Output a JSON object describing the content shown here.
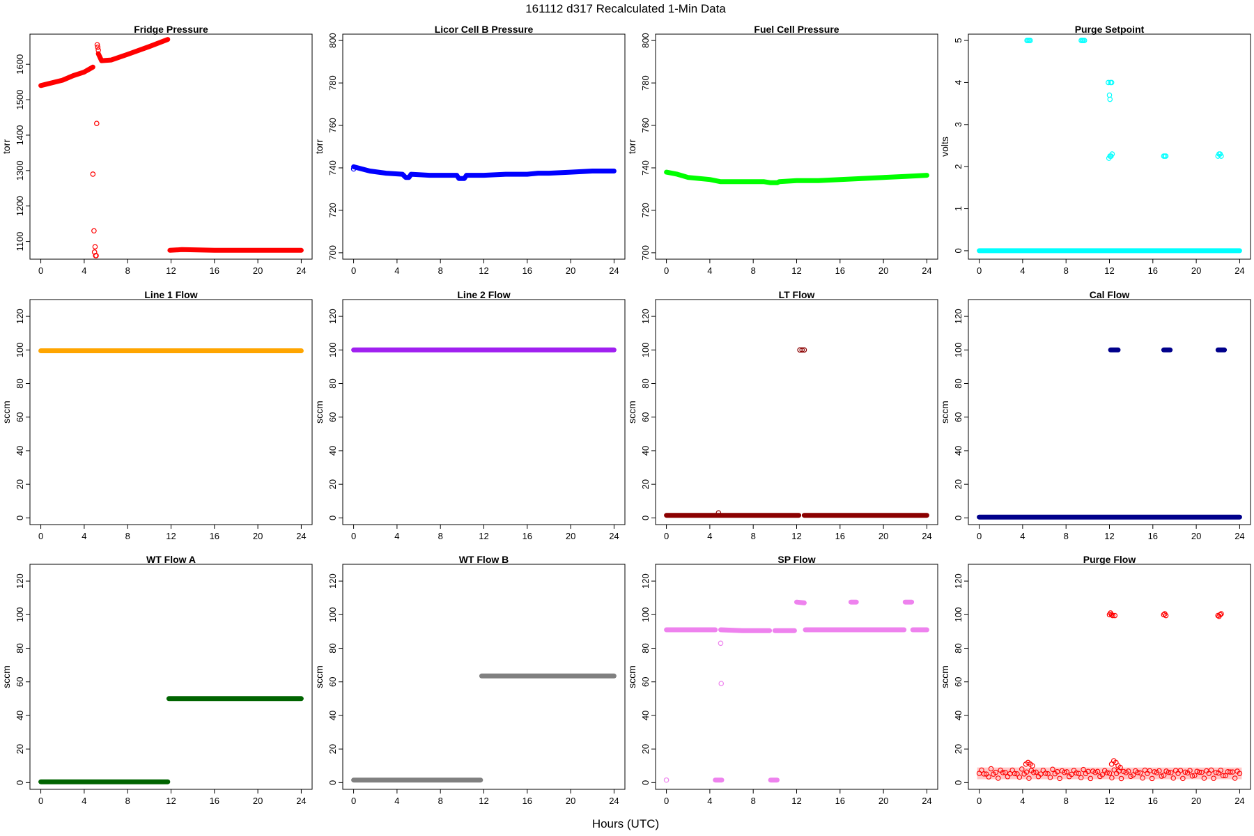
{
  "figure": {
    "title": "161112   d317   Recalculated 1-Min Data",
    "xlabel": "Hours (UTC)"
  },
  "chart_data": [
    {
      "type": "scatter",
      "title": "Fridge Pressure",
      "ylabel": "torr",
      "xlim": [
        -1,
        25
      ],
      "ylim": [
        1050,
        1685
      ],
      "xticks": [
        0,
        4,
        8,
        12,
        16,
        20,
        24
      ],
      "yticks": [
        1100,
        1200,
        1300,
        1400,
        1500,
        1600
      ],
      "color": "#ff0000",
      "series": [
        {
          "type": "line",
          "points": [
            [
              0,
              1540
            ],
            [
              2,
              1555
            ],
            [
              3,
              1568
            ],
            [
              4,
              1578
            ],
            [
              4.8,
              1592
            ]
          ]
        },
        {
          "type": "line",
          "points": [
            [
              5.3,
              1630
            ],
            [
              5.6,
              1610
            ],
            [
              6.5,
              1612
            ],
            [
              8,
              1628
            ],
            [
              10,
              1650
            ],
            [
              11.7,
              1670
            ]
          ]
        },
        {
          "type": "line",
          "points": [
            [
              11.9,
              1075
            ],
            [
              13,
              1077
            ],
            [
              16,
              1075
            ],
            [
              20,
              1075
            ],
            [
              24,
              1075
            ]
          ]
        },
        {
          "type": "points",
          "points": [
            [
              4.8,
              1290
            ],
            [
              4.9,
              1130
            ],
            [
              5.0,
              1085
            ],
            [
              4.95,
              1070
            ],
            [
              5.05,
              1060
            ],
            [
              5.1,
              1060
            ],
            [
              5.15,
              1433
            ],
            [
              5.2,
              1655
            ],
            [
              5.25,
              1648
            ],
            [
              5.3,
              1640
            ]
          ]
        }
      ]
    },
    {
      "type": "scatter",
      "title": "Licor Cell B Pressure",
      "ylabel": "torr",
      "xlim": [
        -1,
        25
      ],
      "ylim": [
        697,
        803
      ],
      "xticks": [
        0,
        4,
        8,
        12,
        16,
        20,
        24
      ],
      "yticks": [
        700,
        720,
        740,
        760,
        780,
        800
      ],
      "color": "#0000ff",
      "series": [
        {
          "type": "line",
          "points": [
            [
              0,
              740.5
            ],
            [
              1.5,
              738.5
            ],
            [
              3,
              737.5
            ],
            [
              4.5,
              737
            ],
            [
              4.8,
              735.5
            ],
            [
              5.1,
              735.5
            ],
            [
              5.3,
              737
            ],
            [
              7,
              736.5
            ],
            [
              9.5,
              736.5
            ],
            [
              9.7,
              735
            ],
            [
              10.2,
              735
            ],
            [
              10.4,
              736.5
            ],
            [
              12,
              736.5
            ],
            [
              14,
              737
            ],
            [
              16,
              737
            ],
            [
              17,
              737.5
            ],
            [
              18,
              737.5
            ],
            [
              20,
              738
            ],
            [
              22,
              738.5
            ],
            [
              24,
              738.5
            ]
          ]
        },
        {
          "type": "points",
          "points": [
            [
              0,
              739.5
            ]
          ]
        }
      ]
    },
    {
      "type": "scatter",
      "title": "Fuel Cell Pressure",
      "ylabel": "torr",
      "xlim": [
        -1,
        25
      ],
      "ylim": [
        697,
        803
      ],
      "xticks": [
        0,
        4,
        8,
        12,
        16,
        20,
        24
      ],
      "yticks": [
        700,
        720,
        740,
        760,
        780,
        800
      ],
      "color": "#00ff00",
      "series": [
        {
          "type": "line",
          "points": [
            [
              0,
              738
            ],
            [
              1,
              737
            ],
            [
              2,
              735.5
            ],
            [
              4,
              734.5
            ],
            [
              5,
              733.5
            ],
            [
              7,
              733.5
            ],
            [
              9,
              733.5
            ],
            [
              9.6,
              733
            ],
            [
              10.2,
              733
            ],
            [
              10.4,
              733.5
            ],
            [
              12,
              734
            ],
            [
              14,
              734
            ],
            [
              16,
              734.5
            ],
            [
              18,
              735
            ],
            [
              20,
              735.5
            ],
            [
              22,
              736
            ],
            [
              24,
              736.5
            ]
          ]
        }
      ]
    },
    {
      "type": "scatter",
      "title": "Purge Setpoint",
      "ylabel": "volts",
      "xlim": [
        -1,
        25
      ],
      "ylim": [
        -0.2,
        5.15
      ],
      "xticks": [
        0,
        4,
        8,
        12,
        16,
        20,
        24
      ],
      "yticks": [
        0,
        1,
        2,
        3,
        4,
        5
      ],
      "color": "#00ffff",
      "series": [
        {
          "type": "line",
          "points": [
            [
              0,
              0
            ],
            [
              24,
              0
            ]
          ]
        },
        {
          "type": "points",
          "points": [
            [
              4.4,
              5
            ],
            [
              4.5,
              5
            ],
            [
              4.6,
              5
            ],
            [
              4.7,
              5
            ],
            [
              9.4,
              5
            ],
            [
              9.5,
              5
            ],
            [
              9.6,
              5
            ],
            [
              9.7,
              5
            ],
            [
              11.9,
              4
            ],
            [
              12.0,
              3.7
            ],
            [
              12.05,
              3.6
            ],
            [
              12.1,
              4
            ],
            [
              12.2,
              4
            ],
            [
              11.95,
              2.2
            ],
            [
              12.05,
              2.25
            ],
            [
              12.15,
              2.25
            ],
            [
              12.25,
              2.3
            ],
            [
              17,
              2.25
            ],
            [
              17.1,
              2.25
            ],
            [
              17.2,
              2.25
            ],
            [
              22.0,
              2.25
            ],
            [
              22.1,
              2.3
            ],
            [
              22.2,
              2.3
            ],
            [
              22.3,
              2.25
            ]
          ]
        }
      ]
    },
    {
      "type": "scatter",
      "title": "Line 1 Flow",
      "ylabel": "sccm",
      "xlim": [
        -1,
        25
      ],
      "ylim": [
        -4,
        130
      ],
      "xticks": [
        0,
        4,
        8,
        12,
        16,
        20,
        24
      ],
      "yticks": [
        0,
        20,
        40,
        60,
        80,
        100,
        120
      ],
      "color": "#ffa500",
      "series": [
        {
          "type": "line",
          "points": [
            [
              0,
              99.5
            ],
            [
              24,
              99.5
            ]
          ]
        }
      ]
    },
    {
      "type": "scatter",
      "title": "Line 2 Flow",
      "ylabel": "sccm",
      "xlim": [
        -1,
        25
      ],
      "ylim": [
        -4,
        130
      ],
      "xticks": [
        0,
        4,
        8,
        12,
        16,
        20,
        24
      ],
      "yticks": [
        0,
        20,
        40,
        60,
        80,
        100,
        120
      ],
      "color": "#a020f0",
      "series": [
        {
          "type": "line",
          "points": [
            [
              0,
              100
            ],
            [
              24,
              100
            ]
          ]
        }
      ]
    },
    {
      "type": "scatter",
      "title": "LT Flow",
      "ylabel": "sccm",
      "xlim": [
        -1,
        25
      ],
      "ylim": [
        -4,
        130
      ],
      "xticks": [
        0,
        4,
        8,
        12,
        16,
        20,
        24
      ],
      "yticks": [
        0,
        20,
        40,
        60,
        80,
        100,
        120
      ],
      "color": "#8b0000",
      "series": [
        {
          "type": "line",
          "points": [
            [
              0,
              1.5
            ],
            [
              12.2,
              1.5
            ]
          ]
        },
        {
          "type": "line",
          "points": [
            [
              12.7,
              1.5
            ],
            [
              24,
              1.5
            ]
          ]
        },
        {
          "type": "points",
          "points": [
            [
              4.8,
              3
            ],
            [
              12.3,
              100
            ],
            [
              12.5,
              100
            ],
            [
              12.7,
              100
            ]
          ]
        }
      ]
    },
    {
      "type": "scatter",
      "title": "Cal Flow",
      "ylabel": "sccm",
      "xlim": [
        -1,
        25
      ],
      "ylim": [
        -4,
        130
      ],
      "xticks": [
        0,
        4,
        8,
        12,
        16,
        20,
        24
      ],
      "yticks": [
        0,
        20,
        40,
        60,
        80,
        100,
        120
      ],
      "color": "#00008b",
      "series": [
        {
          "type": "line",
          "points": [
            [
              0,
              0.5
            ],
            [
              24,
              0.5
            ]
          ]
        },
        {
          "type": "line",
          "points": [
            [
              12.1,
              100
            ],
            [
              12.8,
              100
            ]
          ]
        },
        {
          "type": "line",
          "points": [
            [
              17,
              100
            ],
            [
              17.6,
              100
            ]
          ]
        },
        {
          "type": "line",
          "points": [
            [
              22,
              100
            ],
            [
              22.6,
              100
            ]
          ]
        }
      ]
    },
    {
      "type": "scatter",
      "title": "WT Flow A",
      "ylabel": "sccm",
      "xlim": [
        -1,
        25
      ],
      "ylim": [
        -4,
        130
      ],
      "xticks": [
        0,
        4,
        8,
        12,
        16,
        20,
        24
      ],
      "yticks": [
        0,
        20,
        40,
        60,
        80,
        100,
        120
      ],
      "color": "#006400",
      "series": [
        {
          "type": "line",
          "points": [
            [
              0,
              0.5
            ],
            [
              11.7,
              0.5
            ]
          ]
        },
        {
          "type": "line",
          "points": [
            [
              11.8,
              50
            ],
            [
              24,
              50
            ]
          ]
        }
      ]
    },
    {
      "type": "scatter",
      "title": "WT Flow B",
      "ylabel": "sccm",
      "xlim": [
        -1,
        25
      ],
      "ylim": [
        -4,
        130
      ],
      "xticks": [
        0,
        4,
        8,
        12,
        16,
        20,
        24
      ],
      "yticks": [
        0,
        20,
        40,
        60,
        80,
        100,
        120
      ],
      "color": "#808080",
      "series": [
        {
          "type": "line",
          "points": [
            [
              0,
              1.5
            ],
            [
              11.7,
              1.5
            ]
          ]
        },
        {
          "type": "line",
          "points": [
            [
              11.8,
              63.5
            ],
            [
              24,
              63.5
            ]
          ]
        }
      ]
    },
    {
      "type": "scatter",
      "title": "SP Flow",
      "ylabel": "sccm",
      "xlim": [
        -1,
        25
      ],
      "ylim": [
        -4,
        130
      ],
      "xticks": [
        0,
        4,
        8,
        12,
        16,
        20,
        24
      ],
      "yticks": [
        0,
        20,
        40,
        60,
        80,
        100,
        120
      ],
      "color": "#ee82ee",
      "series": [
        {
          "type": "line",
          "points": [
            [
              0,
              91
            ],
            [
              4.5,
              91
            ]
          ]
        },
        {
          "type": "line",
          "points": [
            [
              5,
              91
            ],
            [
              7,
              90.5
            ],
            [
              9.5,
              90.5
            ]
          ]
        },
        {
          "type": "line",
          "points": [
            [
              10,
              90.5
            ],
            [
              11.8,
              90.5
            ]
          ]
        },
        {
          "type": "line",
          "points": [
            [
              12,
              107.5
            ],
            [
              12.7,
              107
            ]
          ]
        },
        {
          "type": "line",
          "points": [
            [
              12.8,
              91
            ],
            [
              17,
              91
            ],
            [
              21.9,
              91
            ]
          ]
        },
        {
          "type": "line",
          "points": [
            [
              17,
              107.5
            ],
            [
              17.5,
              107.5
            ]
          ]
        },
        {
          "type": "line",
          "points": [
            [
              22,
              107.5
            ],
            [
              22.6,
              107.5
            ]
          ]
        },
        {
          "type": "line",
          "points": [
            [
              22.7,
              91
            ],
            [
              24,
              91
            ]
          ]
        },
        {
          "type": "line",
          "points": [
            [
              4.5,
              1.5
            ],
            [
              5.1,
              1.5
            ]
          ]
        },
        {
          "type": "line",
          "points": [
            [
              9.6,
              1.5
            ],
            [
              10.2,
              1.5
            ]
          ]
        },
        {
          "type": "points",
          "points": [
            [
              0,
              1.5
            ],
            [
              5,
              83
            ],
            [
              5.05,
              59
            ]
          ]
        }
      ]
    },
    {
      "type": "scatter",
      "title": "Purge Flow",
      "ylabel": "sccm",
      "xlim": [
        -1,
        25
      ],
      "ylim": [
        -4,
        130
      ],
      "xticks": [
        0,
        4,
        8,
        12,
        16,
        20,
        24
      ],
      "yticks": [
        0,
        20,
        40,
        60,
        80,
        100,
        120
      ],
      "color": "#ff0000",
      "series": [
        {
          "type": "band",
          "lo": 2,
          "hi": 9,
          "x": [
            0,
            24
          ]
        },
        {
          "type": "points",
          "points": [
            [
              4.3,
              11
            ],
            [
              4.5,
              12
            ],
            [
              4.7,
              11
            ],
            [
              4.9,
              10
            ],
            [
              12.2,
              11
            ],
            [
              12.4,
              13
            ],
            [
              12.6,
              12
            ],
            [
              12.8,
              10
            ],
            [
              13,
              9
            ],
            [
              12.0,
              100
            ],
            [
              12.2,
              100
            ],
            [
              12.3,
              99.5
            ],
            [
              12.5,
              99.5
            ],
            [
              12.1,
              101
            ],
            [
              17.0,
              100
            ],
            [
              17.2,
              99.5
            ],
            [
              17.1,
              100.5
            ],
            [
              22.0,
              99.5
            ],
            [
              22.2,
              100
            ],
            [
              22.3,
              100.5
            ],
            [
              22.1,
              99
            ]
          ]
        }
      ]
    }
  ]
}
